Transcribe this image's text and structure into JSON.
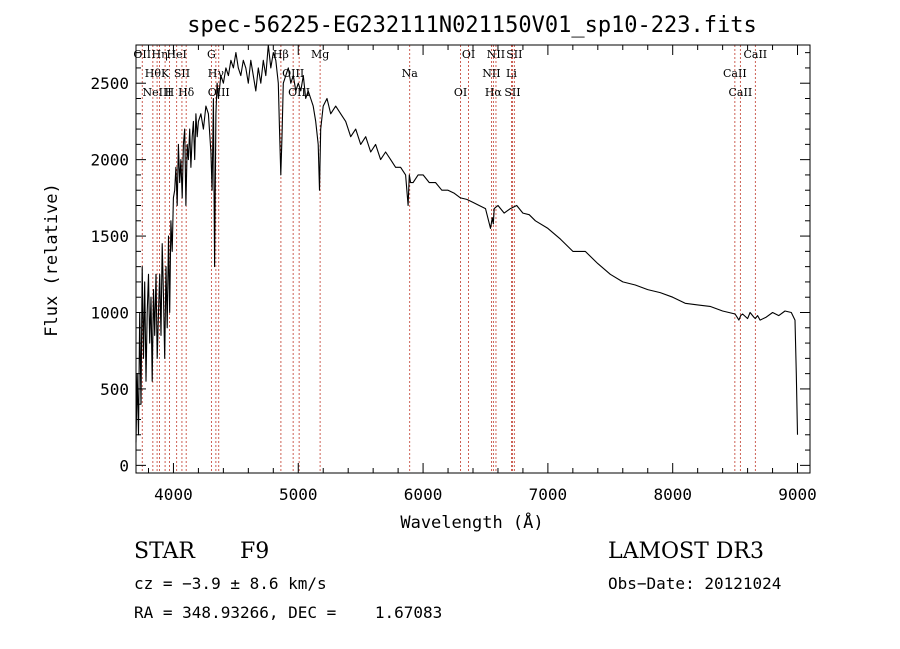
{
  "chart_data": {
    "type": "line",
    "title": "spec-56225-EG232111N021150V01_sp10-223.fits",
    "xlabel": "Wavelength (Å)",
    "ylabel": "Flux (relative)",
    "xlim": [
      3700,
      9100
    ],
    "ylim": [
      -50,
      2750
    ],
    "xticks": [
      4000,
      5000,
      6000,
      7000,
      8000,
      9000
    ],
    "yticks": [
      0,
      500,
      1000,
      1500,
      2000,
      2500
    ],
    "xtick_labels": [
      "4000",
      "5000",
      "6000",
      "7000",
      "8000",
      "9000"
    ],
    "ytick_labels": [
      "0",
      "500",
      "1000",
      "1500",
      "2000",
      "2500"
    ],
    "grid": false,
    "line_color": "#000000",
    "marker_color": "#c0392b",
    "series": [
      {
        "name": "flux",
        "x": [
          3700,
          3710,
          3720,
          3730,
          3740,
          3750,
          3760,
          3770,
          3780,
          3790,
          3800,
          3810,
          3820,
          3830,
          3840,
          3850,
          3860,
          3870,
          3880,
          3890,
          3900,
          3910,
          3920,
          3930,
          3940,
          3950,
          3960,
          3970,
          3980,
          3990,
          4000,
          4010,
          4020,
          4030,
          4040,
          4050,
          4060,
          4070,
          4080,
          4090,
          4100,
          4110,
          4120,
          4130,
          4140,
          4150,
          4160,
          4170,
          4180,
          4190,
          4200,
          4220,
          4240,
          4260,
          4280,
          4300,
          4310,
          4320,
          4330,
          4340,
          4350,
          4360,
          4380,
          4400,
          4420,
          4440,
          4460,
          4480,
          4500,
          4520,
          4540,
          4560,
          4580,
          4600,
          4620,
          4640,
          4660,
          4680,
          4700,
          4720,
          4740,
          4760,
          4780,
          4800,
          4820,
          4840,
          4850,
          4860,
          4870,
          4880,
          4900,
          4920,
          4940,
          4960,
          4980,
          5000,
          5020,
          5040,
          5060,
          5080,
          5100,
          5120,
          5140,
          5160,
          5170,
          5180,
          5200,
          5230,
          5260,
          5300,
          5340,
          5380,
          5420,
          5460,
          5500,
          5540,
          5580,
          5620,
          5660,
          5700,
          5740,
          5780,
          5820,
          5860,
          5880,
          5890,
          5900,
          5920,
          5960,
          6000,
          6050,
          6100,
          6150,
          6200,
          6250,
          6300,
          6350,
          6400,
          6450,
          6500,
          6540,
          6555,
          6563,
          6570,
          6600,
          6650,
          6700,
          6750,
          6800,
          6850,
          6900,
          7000,
          7100,
          7200,
          7300,
          7400,
          7500,
          7600,
          7700,
          7800,
          7900,
          8000,
          8100,
          8200,
          8300,
          8400,
          8450,
          8500,
          8530,
          8545,
          8560,
          8600,
          8620,
          8650,
          8662,
          8680,
          8700,
          8750,
          8800,
          8850,
          8900,
          8950,
          8980,
          8990,
          9000
        ],
        "y": [
          150,
          600,
          200,
          1000,
          400,
          1300,
          700,
          1200,
          550,
          1000,
          1250,
          800,
          1100,
          550,
          1150,
          850,
          1250,
          700,
          1000,
          1250,
          850,
          1450,
          1100,
          700,
          1300,
          900,
          1500,
          1000,
          1600,
          1400,
          1750,
          1800,
          1950,
          1700,
          2100,
          1850,
          2000,
          1750,
          2100,
          2200,
          1700,
          2100,
          2000,
          2200,
          1950,
          2150,
          2250,
          2000,
          2300,
          2150,
          2250,
          2300,
          2200,
          2350,
          2300,
          2050,
          1800,
          2400,
          1300,
          2300,
          2500,
          2400,
          2550,
          2500,
          2600,
          2550,
          2650,
          2600,
          2700,
          2600,
          2550,
          2650,
          2600,
          2500,
          2650,
          2550,
          2450,
          2600,
          2500,
          2650,
          2550,
          2750,
          2600,
          2700,
          2650,
          2500,
          2200,
          1900,
          2150,
          2500,
          2550,
          2600,
          2500,
          2550,
          2450,
          2500,
          2450,
          2550,
          2400,
          2450,
          2400,
          2350,
          2250,
          2100,
          1800,
          2200,
          2350,
          2400,
          2300,
          2350,
          2300,
          2250,
          2150,
          2200,
          2100,
          2150,
          2050,
          2100,
          2000,
          2050,
          2000,
          1950,
          1950,
          1900,
          1700,
          1900,
          1850,
          1850,
          1900,
          1900,
          1850,
          1850,
          1800,
          1800,
          1780,
          1750,
          1740,
          1720,
          1700,
          1680,
          1550,
          1620,
          1580,
          1680,
          1700,
          1650,
          1680,
          1700,
          1650,
          1640,
          1600,
          1550,
          1480,
          1400,
          1400,
          1320,
          1250,
          1200,
          1180,
          1150,
          1130,
          1100,
          1060,
          1050,
          1040,
          1010,
          1000,
          990,
          950,
          980,
          990,
          960,
          1000,
          970,
          960,
          980,
          950,
          970,
          1000,
          980,
          1010,
          1000,
          950,
          600,
          200
        ]
      }
    ],
    "line_markers": [
      {
        "wavelength": 3750,
        "label": "OII"
      },
      {
        "wavelength": 3835,
        "label": "Hθ"
      },
      {
        "wavelength": 3869,
        "label": "NeIII"
      },
      {
        "wavelength": 3889,
        "label": "Hη"
      },
      {
        "wavelength": 3933,
        "label": "K"
      },
      {
        "wavelength": 3968,
        "label": "H"
      },
      {
        "wavelength": 4026,
        "label": "HeI"
      },
      {
        "wavelength": 4068,
        "label": "SII"
      },
      {
        "wavelength": 4102,
        "label": "Hδ"
      },
      {
        "wavelength": 4304,
        "label": "G"
      },
      {
        "wavelength": 4340,
        "label": "Hγ"
      },
      {
        "wavelength": 4363,
        "label": "OIII"
      },
      {
        "wavelength": 4861,
        "label": "Hβ"
      },
      {
        "wavelength": 4959,
        "label": "OIII"
      },
      {
        "wavelength": 5007,
        "label": "OIII"
      },
      {
        "wavelength": 5175,
        "label": "Mg"
      },
      {
        "wavelength": 5893,
        "label": "Na"
      },
      {
        "wavelength": 6300,
        "label": "OI"
      },
      {
        "wavelength": 6364,
        "label": "OI"
      },
      {
        "wavelength": 6548,
        "label": "NII"
      },
      {
        "wavelength": 6563,
        "label": "Hα"
      },
      {
        "wavelength": 6584,
        "label": "NII"
      },
      {
        "wavelength": 6708,
        "label": "Li"
      },
      {
        "wavelength": 6716,
        "label": "SII"
      },
      {
        "wavelength": 6731,
        "label": "SII"
      },
      {
        "wavelength": 8498,
        "label": "CaII"
      },
      {
        "wavelength": 8542,
        "label": "CaII"
      },
      {
        "wavelength": 8662,
        "label": "CaII"
      }
    ]
  },
  "info": {
    "class_label": "STAR",
    "subclass": "F9",
    "survey": "LAMOST DR3",
    "cz": "cz = −3.9 ± 8.6 km/s",
    "obs_date": "Obs−Date: 20121024",
    "coords": "RA = 348.93266, DEC =    1.67083"
  }
}
